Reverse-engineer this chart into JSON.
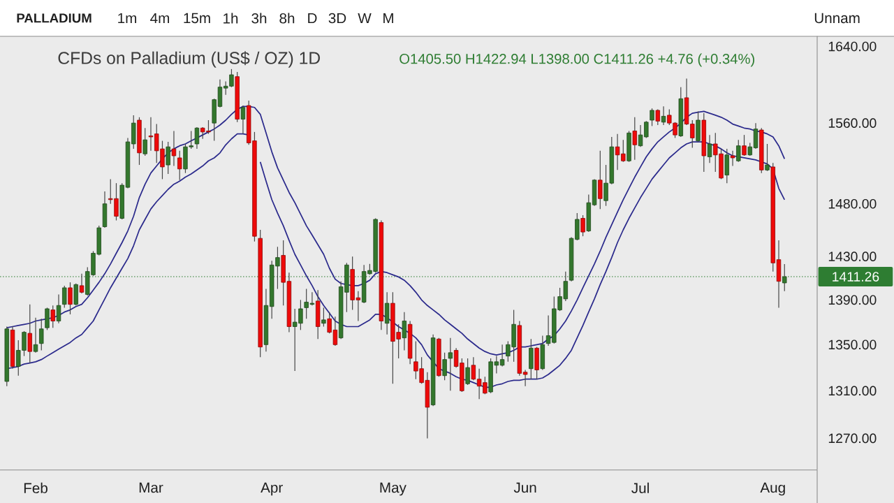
{
  "chart_data": {
    "type": "candlestick",
    "title": "CFDs on Palladium (US$ / OZ) 1D",
    "subtitle": "O1405.50 H1422.94 L1398.00 C1411.26 +4.76 (+0.34%)",
    "annotations": [
      "PALLADIUM",
      "1m",
      "4m",
      "15m",
      "1h",
      "3h",
      "8h",
      "D",
      "3D",
      "W",
      "M",
      "Unnam"
    ],
    "categories": [
      null,
      null,
      null,
      null,
      null,
      "Feb",
      null,
      null,
      null,
      null,
      null,
      null,
      null,
      null,
      null,
      null,
      null,
      null,
      null,
      null,
      null,
      null,
      null,
      null,
      null,
      "Mar",
      null,
      null,
      null,
      null,
      null,
      null,
      null,
      null,
      null,
      null,
      null,
      null,
      null,
      null,
      null,
      null,
      null,
      null,
      null,
      null,
      "Apr",
      null,
      null,
      null,
      null,
      null,
      null,
      null,
      null,
      null,
      null,
      null,
      null,
      null,
      null,
      null,
      null,
      null,
      null,
      null,
      null,
      "May",
      null,
      null,
      null,
      null,
      null,
      null,
      null,
      null,
      null,
      null,
      null,
      null,
      null,
      null,
      null,
      null,
      null,
      null,
      null,
      null,
      null,
      null,
      "Jun",
      null,
      null,
      null,
      null,
      null,
      null,
      null,
      null,
      null,
      null,
      null,
      null,
      null,
      null,
      null,
      null,
      null,
      null,
      null,
      "Jul",
      null,
      null,
      null,
      null,
      null,
      null,
      null,
      null,
      null,
      null,
      null,
      null,
      null,
      null,
      null,
      null,
      null,
      null,
      null,
      null,
      null,
      null,
      "Aug",
      null,
      null
    ],
    "ohlc": [
      [
        1318,
        1366,
        1314,
        1364
      ],
      [
        1363,
        1366,
        1329,
        1331
      ],
      [
        1331,
        1354,
        1323,
        1345
      ],
      [
        1345,
        1362,
        1340,
        1361
      ],
      [
        1360,
        1386,
        1334,
        1344
      ],
      [
        1344,
        1374,
        1343,
        1350
      ],
      [
        1351,
        1373,
        1345,
        1364
      ],
      [
        1365,
        1383,
        1363,
        1382
      ],
      [
        1381,
        1385,
        1365,
        1371
      ],
      [
        1371,
        1395,
        1369,
        1385
      ],
      [
        1386,
        1403,
        1383,
        1401
      ],
      [
        1401,
        1406,
        1377,
        1386
      ],
      [
        1386,
        1405,
        1385,
        1404
      ],
      [
        1403,
        1414,
        1396,
        1397
      ],
      [
        1395,
        1420,
        1394,
        1416
      ],
      [
        1413,
        1435,
        1412,
        1433
      ],
      [
        1432,
        1459,
        1431,
        1457
      ],
      [
        1458,
        1492,
        1457,
        1480
      ],
      [
        1485,
        1504,
        1480,
        1484
      ],
      [
        1485,
        1500,
        1464,
        1468
      ],
      [
        1466,
        1500,
        1465,
        1498
      ],
      [
        1496,
        1545,
        1495,
        1541
      ],
      [
        1539,
        1568,
        1534,
        1560
      ],
      [
        1563,
        1566,
        1518,
        1530
      ],
      [
        1529,
        1555,
        1527,
        1543
      ],
      [
        1547,
        1566,
        1532,
        1546
      ],
      [
        1549,
        1559,
        1520,
        1532
      ],
      [
        1534,
        1542,
        1504,
        1516
      ],
      [
        1518,
        1541,
        1509,
        1536
      ],
      [
        1534,
        1552,
        1517,
        1527
      ],
      [
        1525,
        1532,
        1503,
        1514
      ],
      [
        1514,
        1539,
        1510,
        1536
      ],
      [
        1536,
        1552,
        1534,
        1537
      ],
      [
        1539,
        1556,
        1534,
        1555
      ],
      [
        1555,
        1556,
        1544,
        1551
      ],
      [
        1552,
        1563,
        1549,
        1551
      ],
      [
        1560,
        1585,
        1542,
        1584
      ],
      [
        1577,
        1605,
        1576,
        1597
      ],
      [
        1596,
        1603,
        1589,
        1598
      ],
      [
        1598,
        1616,
        1597,
        1610
      ],
      [
        1608,
        1613,
        1561,
        1564
      ],
      [
        1564,
        1578,
        1549,
        1576
      ],
      [
        1578,
        1583,
        1538,
        1540
      ],
      [
        1542,
        1551,
        1444,
        1449
      ],
      [
        1447,
        1455,
        1339,
        1348
      ],
      [
        1350,
        1400,
        1344,
        1385
      ],
      [
        1384,
        1426,
        1373,
        1422
      ],
      [
        1421,
        1439,
        1400,
        1429
      ],
      [
        1431,
        1445,
        1385,
        1406
      ],
      [
        1407,
        1415,
        1361,
        1366
      ],
      [
        1366,
        1382,
        1327,
        1370
      ],
      [
        1369,
        1390,
        1363,
        1382
      ],
      [
        1383,
        1400,
        1373,
        1388
      ],
      [
        1386,
        1397,
        1385,
        1387
      ],
      [
        1389,
        1399,
        1355,
        1366
      ],
      [
        1369,
        1383,
        1366,
        1372
      ],
      [
        1373,
        1379,
        1360,
        1361
      ],
      [
        1363,
        1375,
        1349,
        1350
      ],
      [
        1356,
        1407,
        1355,
        1402
      ],
      [
        1397,
        1424,
        1379,
        1422
      ],
      [
        1418,
        1430,
        1381,
        1390
      ],
      [
        1392,
        1398,
        1371,
        1390
      ],
      [
        1388,
        1422,
        1387,
        1416
      ],
      [
        1414,
        1423,
        1413,
        1417
      ],
      [
        1416,
        1466,
        1415,
        1465
      ],
      [
        1462,
        1464,
        1363,
        1371
      ],
      [
        1369,
        1397,
        1359,
        1387
      ],
      [
        1387,
        1397,
        1316,
        1353
      ],
      [
        1361,
        1368,
        1338,
        1355
      ],
      [
        1356,
        1379,
        1345,
        1371
      ],
      [
        1368,
        1371,
        1333,
        1338
      ],
      [
        1335,
        1353,
        1320,
        1327
      ],
      [
        1329,
        1339,
        1316,
        1317
      ],
      [
        1319,
        1326,
        1270,
        1296
      ],
      [
        1298,
        1359,
        1297,
        1356
      ],
      [
        1355,
        1356,
        1322,
        1323
      ],
      [
        1323,
        1343,
        1319,
        1337
      ],
      [
        1338,
        1356,
        1310,
        1343
      ],
      [
        1345,
        1347,
        1330,
        1331
      ],
      [
        1334,
        1338,
        1309,
        1310
      ],
      [
        1316,
        1338,
        1315,
        1330
      ],
      [
        1332,
        1339,
        1319,
        1320
      ],
      [
        1320,
        1329,
        1303,
        1314
      ],
      [
        1317,
        1322,
        1307,
        1308
      ],
      [
        1309,
        1338,
        1308,
        1335
      ],
      [
        1332,
        1340,
        1325,
        1335
      ],
      [
        1332,
        1350,
        1331,
        1337
      ],
      [
        1340,
        1353,
        1335,
        1350
      ],
      [
        1348,
        1381,
        1335,
        1368
      ],
      [
        1367,
        1371,
        1323,
        1325
      ],
      [
        1326,
        1328,
        1314,
        1324
      ],
      [
        1329,
        1355,
        1320,
        1347
      ],
      [
        1347,
        1348,
        1320,
        1328
      ],
      [
        1329,
        1358,
        1328,
        1350
      ],
      [
        1351,
        1376,
        1349,
        1358
      ],
      [
        1352,
        1393,
        1351,
        1382
      ],
      [
        1381,
        1401,
        1380,
        1393
      ],
      [
        1391,
        1416,
        1389,
        1407
      ],
      [
        1408,
        1448,
        1407,
        1447
      ],
      [
        1446,
        1471,
        1445,
        1465
      ],
      [
        1466,
        1469,
        1449,
        1453
      ],
      [
        1454,
        1489,
        1453,
        1481
      ],
      [
        1479,
        1504,
        1478,
        1503
      ],
      [
        1503,
        1532,
        1475,
        1485
      ],
      [
        1483,
        1518,
        1478,
        1500
      ],
      [
        1500,
        1546,
        1499,
        1536
      ],
      [
        1536,
        1549,
        1513,
        1528
      ],
      [
        1529,
        1543,
        1521,
        1522
      ],
      [
        1522,
        1552,
        1521,
        1550
      ],
      [
        1552,
        1566,
        1523,
        1538
      ],
      [
        1537,
        1558,
        1536,
        1548
      ],
      [
        1546,
        1562,
        1545,
        1561
      ],
      [
        1563,
        1575,
        1557,
        1573
      ],
      [
        1573,
        1574,
        1558,
        1562
      ],
      [
        1561,
        1577,
        1558,
        1567
      ],
      [
        1568,
        1574,
        1558,
        1560
      ],
      [
        1560,
        1561,
        1545,
        1548
      ],
      [
        1547,
        1597,
        1546,
        1585
      ],
      [
        1586,
        1606,
        1558,
        1559
      ],
      [
        1559,
        1563,
        1535,
        1545
      ],
      [
        1542,
        1572,
        1541,
        1563
      ],
      [
        1563,
        1570,
        1511,
        1527
      ],
      [
        1526,
        1548,
        1520,
        1539
      ],
      [
        1539,
        1550,
        1511,
        1528
      ],
      [
        1529,
        1534,
        1504,
        1505
      ],
      [
        1508,
        1534,
        1500,
        1528
      ],
      [
        1527,
        1532,
        1517,
        1525
      ],
      [
        1522,
        1543,
        1521,
        1537
      ],
      [
        1537,
        1548,
        1527,
        1528
      ],
      [
        1528,
        1540,
        1527,
        1536
      ],
      [
        1535,
        1560,
        1534,
        1554
      ],
      [
        1553,
        1555,
        1510,
        1513
      ],
      [
        1513,
        1539,
        1512,
        1518
      ],
      [
        1516,
        1520,
        1416,
        1424
      ],
      [
        1427,
        1445,
        1383,
        1407
      ],
      [
        1405.5,
        1422.94,
        1398,
        1411.26
      ]
    ],
    "colors": [
      "#33772d",
      "#ee0a0a",
      "#33772d",
      "#33772d",
      "#ee0a0a",
      "#33772d",
      "#33772d",
      "#33772d",
      "#ee0a0a",
      "#33772d",
      "#33772d",
      "#ee0a0a",
      "#33772d",
      "#ee0a0a",
      "#33772d",
      "#33772d",
      "#33772d",
      "#33772d",
      "#ee0a0a",
      "#ee0a0a",
      "#33772d",
      "#33772d",
      "#33772d",
      "#ee0a0a",
      "#33772d",
      "#ee0a0a",
      "#ee0a0a",
      "#ee0a0a",
      "#33772d",
      "#ee0a0a",
      "#ee0a0a",
      "#33772d",
      "#33772d",
      "#33772d",
      "#ee0a0a",
      "#ee0a0a",
      "#33772d",
      "#33772d",
      "#33772d",
      "#33772d",
      "#ee0a0a",
      "#33772d",
      "#ee0a0a",
      "#ee0a0a",
      "#ee0a0a",
      "#33772d",
      "#33772d",
      "#33772d",
      "#ee0a0a",
      "#ee0a0a",
      "#33772d",
      "#33772d",
      "#33772d",
      "#33772d",
      "#ee0a0a",
      "#33772d",
      "#ee0a0a",
      "#ee0a0a",
      "#33772d",
      "#33772d",
      "#ee0a0a",
      "#ee0a0a",
      "#33772d",
      "#33772d",
      "#33772d",
      "#ee0a0a",
      "#33772d",
      "#ee0a0a",
      "#ee0a0a",
      "#33772d",
      "#ee0a0a",
      "#ee0a0a",
      "#ee0a0a",
      "#ee0a0a",
      "#33772d",
      "#ee0a0a",
      "#33772d",
      "#33772d",
      "#ee0a0a",
      "#ee0a0a",
      "#33772d",
      "#ee0a0a",
      "#ee0a0a",
      "#ee0a0a",
      "#33772d",
      "#33772d",
      "#33772d",
      "#33772d",
      "#33772d",
      "#ee0a0a",
      "#ee0a0a",
      "#33772d",
      "#ee0a0a",
      "#33772d",
      "#33772d",
      "#33772d",
      "#33772d",
      "#33772d",
      "#33772d",
      "#33772d",
      "#ee0a0a",
      "#33772d",
      "#33772d",
      "#ee0a0a",
      "#33772d",
      "#33772d",
      "#ee0a0a",
      "#ee0a0a",
      "#33772d",
      "#ee0a0a",
      "#33772d",
      "#33772d",
      "#33772d",
      "#ee0a0a",
      "#33772d",
      "#ee0a0a",
      "#ee0a0a",
      "#33772d",
      "#ee0a0a",
      "#ee0a0a",
      "#33772d",
      "#ee0a0a",
      "#33772d",
      "#ee0a0a",
      "#ee0a0a",
      "#33772d",
      "#ee0a0a",
      "#33772d",
      "#ee0a0a",
      "#33772d",
      "#33772d",
      "#ee0a0a",
      "#33772d",
      "#ee0a0a",
      "#ee0a0a",
      "#33772d"
    ],
    "series": [
      {
        "type": "line",
        "color": "#2b2a8c",
        "values": [
          1365,
          1366,
          1367,
          1368,
          1369,
          1371,
          1372,
          1373,
          1374,
          1376,
          1379,
          1381,
          1384,
          1386,
          1392,
          1399,
          1406,
          1414,
          1423,
          1433,
          1443,
          1454,
          1468,
          1486,
          1499,
          1510,
          1517,
          1524,
          1530,
          1534,
          1537,
          1539,
          1542,
          1545,
          1548,
          1551,
          1554,
          1558,
          1563,
          1569,
          1574,
          1577,
          1577,
          1576,
          1569,
          1550,
          1531,
          1515,
          1503,
          1491,
          1481,
          1470,
          1459,
          1450,
          1441,
          1432,
          1419,
          1409,
          1405,
          1404,
          1403,
          1403,
          1405,
          1408,
          1414,
          1416,
          1415,
          1413,
          1411,
          1408,
          1403,
          1397,
          1390,
          1385,
          1381,
          1377,
          1372,
          1368,
          1364,
          1360,
          1355,
          1351,
          1347,
          1344,
          1342,
          1341,
          1342,
          1343,
          1345,
          1348,
          1348,
          1349,
          1350,
          1351,
          1355,
          1358,
          1364,
          1371,
          1380,
          1390,
          1401,
          1412,
          1423,
          1435,
          1448,
          1460,
          1472,
          1484,
          1495,
          1506,
          1516,
          1526,
          1534,
          1541,
          1546,
          1551,
          1555,
          1560,
          1566,
          1570,
          1571,
          1572,
          1570,
          1568,
          1566,
          1563,
          1559,
          1557,
          1555,
          1554,
          1552,
          1551,
          1549,
          1546,
          1537,
          1524
        ]
      },
      {
        "type": "line",
        "color": "#2b2a8c",
        "values": [
          1329,
          1330,
          1331,
          1333,
          1334,
          1335,
          1337,
          1340,
          1343,
          1346,
          1349,
          1352,
          1356,
          1359,
          1365,
          1371,
          1381,
          1391,
          1401,
          1410,
          1419,
          1428,
          1440,
          1455,
          1465,
          1475,
          1482,
          1488,
          1494,
          1499,
          1502,
          1506,
          1509,
          1513,
          1517,
          1522,
          1525,
          1530,
          1538,
          1544,
          1549,
          1549,
          1548,
          null,
          1521,
          1502,
          1484,
          1471,
          1459,
          1445,
          1432,
          1422,
          1412,
          1403,
          1393,
          1385,
          1378,
          1371,
          1368,
          1366,
          1366,
          1366,
          1369,
          1372,
          1377,
          1377,
          1374,
          1370,
          1366,
          1363,
          1360,
          1356,
          1350,
          1341,
          1335,
          1329,
          1327,
          1325,
          1322,
          1320,
          1319,
          1317,
          1315,
          1313,
          1313,
          1315,
          1316,
          1318,
          1319,
          1319,
          1320,
          1320,
          1320,
          1321,
          1324,
          1328,
          1332,
          1338,
          1345,
          1356,
          1367,
          1379,
          1391,
          1404,
          1416,
          1429,
          1443,
          1455,
          1466,
          1476,
          1486,
          1495,
          1504,
          1511,
          1518,
          1525,
          1530,
          1535,
          1539,
          1541,
          1541,
          1541,
          1539,
          1537,
          1534,
          1530,
          1527,
          1526,
          1525,
          1524,
          1523,
          1521,
          1519,
          1514,
          1495,
          1484
        ]
      }
    ],
    "ylim": [
      1244,
      1651
    ],
    "log": "y",
    "yticks": [
      {
        "value": 1270,
        "label": "1270.00"
      },
      {
        "value": 1310,
        "label": "1310.00"
      },
      {
        "value": 1350,
        "label": "1350.00"
      },
      {
        "value": 1390,
        "label": "1390.00"
      },
      {
        "value": 1430,
        "label": "1430.00"
      },
      {
        "value": 1480,
        "label": "1480.00"
      },
      {
        "value": 1560,
        "label": "1560.00"
      },
      {
        "value": 1640,
        "label": "1640.00"
      }
    ],
    "ref_lines": [
      {
        "axis": "y",
        "value": 1411.26,
        "label": "1411.26",
        "color": "#2e7d32",
        "line_style": "dotted"
      }
    ]
  }
}
